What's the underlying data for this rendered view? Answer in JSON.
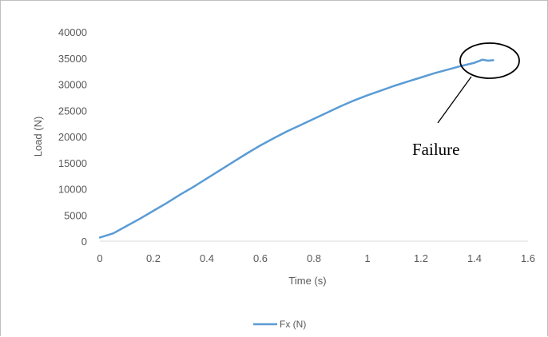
{
  "chart_data": {
    "type": "line",
    "title": "",
    "xlabel": "Time (s)",
    "ylabel": "Load (N)",
    "xlim": [
      0,
      1.6
    ],
    "ylim": [
      0,
      40000
    ],
    "x_ticks": [
      "0",
      "0.2",
      "0.4",
      "0.6",
      "0.8",
      "1",
      "1.2",
      "1.4",
      "1.6"
    ],
    "y_ticks": [
      "0",
      "5000",
      "10000",
      "15000",
      "20000",
      "25000",
      "30000",
      "35000",
      "40000"
    ],
    "grid": false,
    "legend_position": "bottom",
    "series": [
      {
        "name": "Fx (N)",
        "color": "#5b9bd5",
        "x": [
          0,
          0.05,
          0.1,
          0.15,
          0.2,
          0.25,
          0.3,
          0.35,
          0.4,
          0.45,
          0.5,
          0.55,
          0.6,
          0.65,
          0.7,
          0.75,
          0.8,
          0.85,
          0.9,
          0.95,
          1.0,
          1.05,
          1.1,
          1.15,
          1.2,
          1.25,
          1.3,
          1.35,
          1.4,
          1.43,
          1.45,
          1.47
        ],
        "y": [
          700,
          1500,
          2900,
          4300,
          5800,
          7300,
          8900,
          10400,
          12000,
          13600,
          15200,
          16800,
          18300,
          19700,
          21000,
          22200,
          23400,
          24600,
          25800,
          26900,
          27900,
          28800,
          29700,
          30500,
          31300,
          32100,
          32800,
          33500,
          34100,
          34700,
          34500,
          34600
        ]
      }
    ],
    "annotations": [
      {
        "text": "Failure",
        "target": "end-of-curve"
      }
    ]
  }
}
